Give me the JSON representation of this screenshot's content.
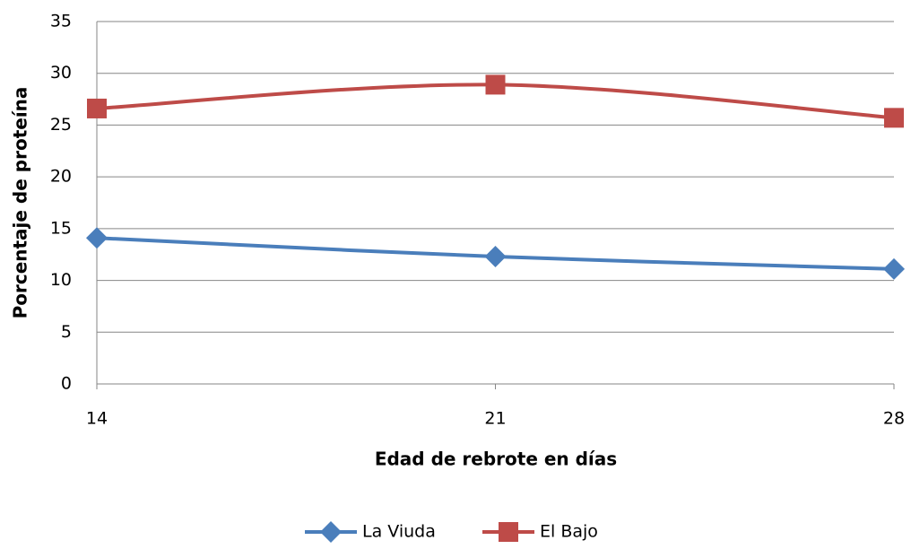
{
  "chart_data": {
    "type": "line",
    "x_label": "Edad de rebrote en días",
    "y_label": "Porcentaje de proteína",
    "x": [
      14,
      21,
      28
    ],
    "xlim": [
      14,
      28
    ],
    "xticks": [
      14,
      21,
      28
    ],
    "ylim": [
      0,
      35
    ],
    "yticks": [
      0,
      5,
      10,
      15,
      20,
      25,
      30,
      35
    ],
    "grid": true,
    "smooth": true,
    "legend": "bottom",
    "series": [
      {
        "name": "La Viuda",
        "color": "#4a7ebb",
        "marker": "diamond",
        "values": [
          14.1,
          12.3,
          11.1
        ]
      },
      {
        "name": "El Bajo",
        "color": "#be4b48",
        "marker": "square",
        "values": [
          26.6,
          28.9,
          25.7
        ]
      }
    ]
  }
}
